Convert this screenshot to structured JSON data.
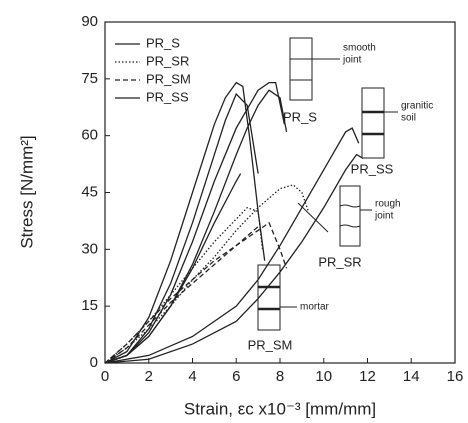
{
  "chart_data": {
    "type": "line",
    "xlabel": "Strain, εc x10⁻³ [mm/mm]",
    "ylabel": "Stress [N/mm²]",
    "xlim": [
      0,
      16
    ],
    "xticks": [
      0,
      2,
      4,
      6,
      8,
      10,
      12,
      14,
      16
    ],
    "ylim": [
      0,
      90
    ],
    "yticks": [
      0,
      15,
      30,
      45,
      60,
      75,
      90
    ],
    "legend": "upper left",
    "series": [
      {
        "name": "PR_S",
        "color": "#222222",
        "dash": "solid",
        "curves": [
          {
            "x": [
              0,
              1,
              2,
              3,
              4,
              5,
              5.5,
              6,
              6.3,
              6.6,
              7,
              7.3
            ],
            "values": [
              0,
              3,
              12,
              27,
              45,
              63,
              70,
              74,
              73,
              60,
              40,
              27
            ]
          },
          {
            "x": [
              0,
              1,
              2,
              3,
              4,
              5,
              5.5,
              6,
              6.5,
              7
            ],
            "values": [
              0,
              2,
              9,
              21,
              37,
              55,
              64,
              71,
              68,
              50
            ]
          },
          {
            "x": [
              0,
              1,
              2,
              3,
              4,
              5,
              6,
              6.2
            ],
            "values": [
              0,
              2,
              7,
              15,
              25,
              37,
              48,
              50
            ]
          }
        ]
      },
      {
        "name": "PR_SR",
        "color": "#222222",
        "dash": "dotted",
        "curves": [
          {
            "x": [
              0,
              1,
              2,
              3,
              4,
              5,
              6,
              7,
              8,
              8.6,
              9,
              9.3
            ],
            "values": [
              0,
              4,
              9,
              15,
              22,
              28,
              35,
              41,
              46,
              47,
              45,
              40
            ]
          },
          {
            "x": [
              0,
              1,
              2,
              3,
              4,
              5,
              6,
              6.5,
              7,
              7.2
            ],
            "values": [
              0,
              5,
              11,
              18,
              25,
              32,
              38,
              41,
              40,
              30
            ]
          }
        ]
      },
      {
        "name": "PR_SM",
        "color": "#222222",
        "dash": "dashed",
        "curves": [
          {
            "x": [
              0,
              1,
              2,
              3,
              4,
              5,
              6,
              7,
              7.5,
              8,
              8.3
            ],
            "values": [
              0,
              5,
              11,
              17,
              22,
              27,
              31,
              35,
              37,
              30,
              25
            ]
          },
          {
            "x": [
              0,
              1,
              2,
              3,
              4,
              5,
              6,
              7
            ],
            "values": [
              0,
              4,
              10,
              16,
              21,
              26,
              31,
              36
            ]
          }
        ]
      },
      {
        "name": "PR_SS",
        "color": "#222222",
        "dash": "solid",
        "curves": [
          {
            "x": [
              0,
              1,
              2,
              3,
              4,
              5,
              6,
              6.5,
              7,
              7.5,
              8,
              8.3
            ],
            "values": [
              0,
              2,
              7,
              15,
              26,
              40,
              55,
              62,
              68,
              72,
              70,
              61
            ]
          },
          {
            "x": [
              0,
              1,
              2,
              3,
              4,
              5,
              6,
              7,
              7.5,
              7.8,
              8.2
            ],
            "values": [
              0,
              2,
              8,
              18,
              32,
              48,
              62,
              72,
              74,
              74,
              63
            ]
          },
          {
            "x": [
              0,
              2,
              4,
              6,
              7,
              8,
              9,
              10,
              10.5,
              11,
              11.3,
              11.6
            ],
            "values": [
              0,
              2,
              7,
              15,
              22,
              31,
              41,
              51,
              56,
              61,
              62,
              58
            ]
          },
          {
            "x": [
              0,
              2,
              4,
              6,
              7,
              8,
              9,
              10,
              11,
              11.5,
              11.8
            ],
            "values": [
              0,
              1,
              5,
              11,
              17,
              24,
              32,
              41,
              51,
              55,
              54
            ]
          }
        ]
      }
    ],
    "annotations": [
      {
        "label": "PR_S",
        "note": [
          "smooth",
          "joint"
        ]
      },
      {
        "label": "PR_SS",
        "note": [
          "granitic",
          "soil"
        ]
      },
      {
        "label": "PR_SR",
        "note": [
          "rough",
          "joint"
        ]
      },
      {
        "label": "PR_SM",
        "note": [
          "mortar"
        ]
      }
    ]
  }
}
